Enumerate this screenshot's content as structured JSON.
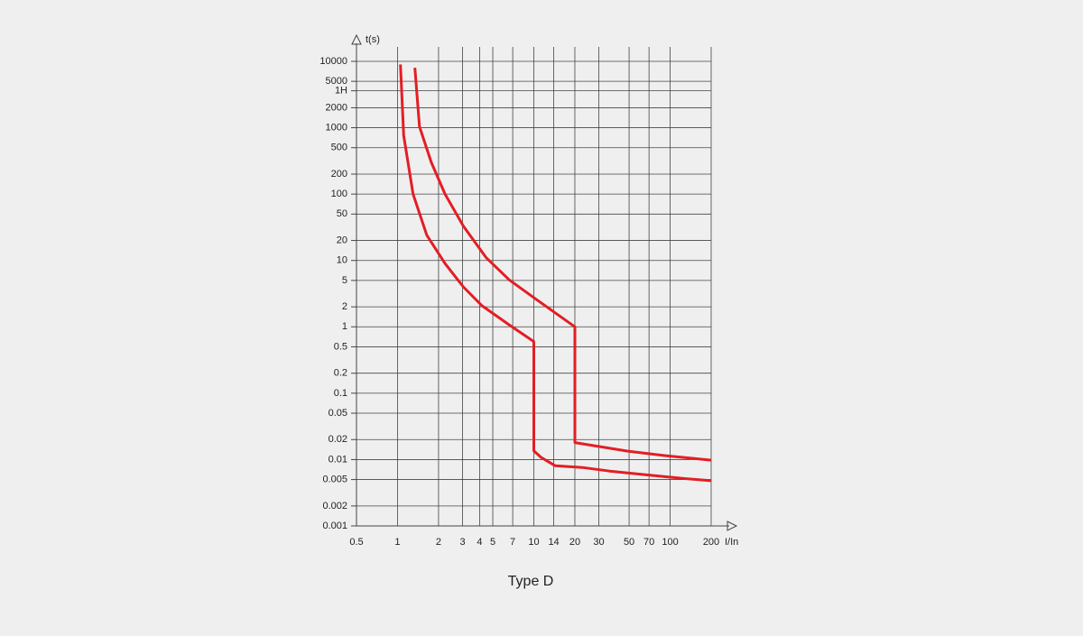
{
  "chart_data": {
    "type": "line",
    "title": "Type D",
    "y_label": "t(s)",
    "x_label": "I/In",
    "xscale": "log",
    "yscale": "log",
    "grid": true,
    "xlim": [
      0.5,
      200
    ],
    "ylim": [
      0.001,
      10000
    ],
    "xticks": [
      0.5,
      1,
      2,
      3,
      4,
      5,
      7,
      10,
      14,
      20,
      30,
      50,
      70,
      100,
      200
    ],
    "yticks": [
      0.001,
      0.002,
      0.005,
      0.01,
      0.02,
      0.05,
      0.1,
      0.2,
      0.5,
      1,
      2,
      5,
      10,
      20,
      50,
      100,
      200,
      500,
      1000,
      2000,
      {
        "value": 3600,
        "label": "1H"
      },
      5000,
      10000
    ],
    "series": [
      {
        "color": "#e31e24",
        "x": [
          1.05,
          1.11,
          1.3,
          1.64,
          2.23,
          3.04,
          4.14,
          6.6,
          10,
          10,
          11.3,
          14.3,
          22.7,
          36,
          66,
          123,
          200
        ],
        "values": [
          9000,
          760,
          100,
          24,
          9,
          4,
          2.1,
          1.07,
          0.6,
          0.0135,
          0.0108,
          0.0081,
          0.0076,
          0.0067,
          0.0059,
          0.0052,
          0.0048
        ]
      },
      {
        "color": "#e31e24",
        "x": [
          1.34,
          1.45,
          1.77,
          2.23,
          3.04,
          4.48,
          6.6,
          10.4,
          20,
          20,
          49,
          91,
          200
        ],
        "values": [
          8000,
          1040,
          300,
          100,
          33,
          11,
          5.1,
          2.6,
          1.0,
          0.018,
          0.0134,
          0.0115,
          0.0098
        ]
      }
    ]
  }
}
